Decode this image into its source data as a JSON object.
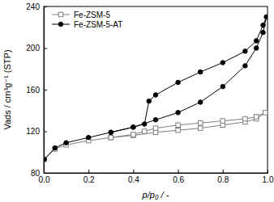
{
  "chart_data": {
    "type": "line",
    "xlabel": "p/p₀ / -",
    "ylabel": "Vads / cm³g⁻¹ (STP)",
    "xlim": [
      0,
      1.0
    ],
    "ylim": [
      80,
      240
    ],
    "xticks": [
      {
        "value": 0,
        "label": "0.0"
      },
      0.2,
      0.4,
      0.6,
      0.8,
      {
        "value": 1,
        "label": "1.0"
      }
    ],
    "yticks": [
      80,
      120,
      160,
      200,
      240
    ],
    "legend": "upper left",
    "series": [
      {
        "name": "Fe-ZSM-5",
        "color": "#7f7f7f",
        "marker": "open-square",
        "x": [
          0.002,
          0.05,
          0.1,
          0.2,
          0.3,
          0.4,
          0.5,
          0.6,
          0.7,
          0.8,
          0.9,
          0.95,
          0.99,
          0.95,
          0.9,
          0.8,
          0.7,
          0.6,
          0.5,
          0.45,
          0.4,
          0.3
        ],
        "values": [
          93,
          103,
          107,
          111,
          114,
          116,
          119,
          121,
          123,
          126,
          129,
          132,
          138,
          134,
          132,
          130,
          128,
          126,
          123,
          120,
          117,
          114
        ]
      },
      {
        "name": "Fe-ZSM-5-AT",
        "color": "#000000",
        "marker": "circle",
        "x": [
          0.002,
          0.05,
          0.1,
          0.2,
          0.3,
          0.4,
          0.5,
          0.6,
          0.7,
          0.8,
          0.9,
          0.95,
          0.98,
          0.995,
          0.98,
          0.95,
          0.9,
          0.8,
          0.7,
          0.6,
          0.5,
          0.47,
          0.45,
          0.4,
          0.3
        ],
        "values": [
          93,
          104,
          109,
          114,
          119,
          124,
          131,
          138,
          148,
          163,
          183,
          200,
          215,
          230,
          222,
          207,
          197,
          186,
          177,
          167,
          155,
          149,
          127,
          124,
          119
        ]
      }
    ]
  }
}
